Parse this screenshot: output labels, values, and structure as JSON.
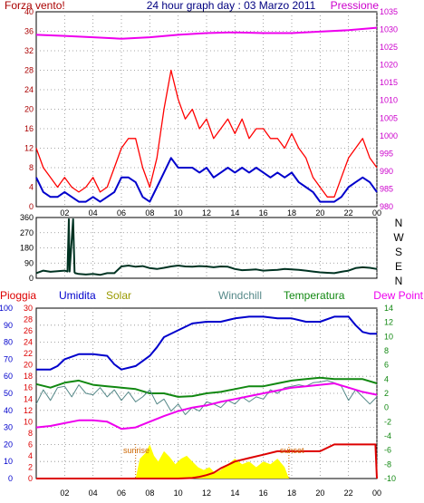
{
  "header": {
    "title": "24 hour graph day : 03 Marzo 2011",
    "left_label": "Forza vento!",
    "right_label": "Pressione"
  },
  "compass": [
    "N",
    "W",
    "S",
    "E",
    "N"
  ],
  "bottom_legend": {
    "pioggia": "Pioggia",
    "umidita": "Umidita",
    "solar": "Solar",
    "windchill": "Windchill",
    "temperatura": "Temperatura",
    "dewpoint": "Dew Point"
  },
  "annotations": {
    "sunrise": "sunrise",
    "sunset": "sunset"
  },
  "colors": {
    "wind_gust": "#ff0000",
    "wind_avg": "#0000cc",
    "pressure": "#ee00ee",
    "direction": "#003322",
    "humidity": "#0000cc",
    "solar": "#ffff00",
    "windchill": "#558888",
    "temperature": "#118811",
    "dewpoint": "#ee00ee",
    "rain": "#dd0000",
    "title": "#000080",
    "left_axis": "#aa0000",
    "right_axis": "#cc00cc"
  },
  "chart_data": [
    {
      "type": "line",
      "title": "24 hour graph day : 03 Marzo 2011",
      "xlabel": "",
      "x_ticks": [
        "02",
        "04",
        "06",
        "08",
        "10",
        "12",
        "14",
        "16",
        "18",
        "20",
        "22",
        "00"
      ],
      "x_range_hours": [
        0,
        24
      ],
      "y_left": {
        "label": "Forza vento!",
        "range": [
          0,
          40
        ],
        "ticks": [
          "0",
          "4",
          "8",
          "12",
          "16",
          "20",
          "24",
          "28",
          "32",
          "36",
          "40"
        ]
      },
      "y_right": {
        "label": "Pressione",
        "range": [
          980,
          1035
        ],
        "ticks": [
          "980",
          "985",
          "990",
          "995",
          "1000",
          "1005",
          "1010",
          "1015",
          "1020",
          "1025",
          "1030",
          "1035"
        ]
      },
      "grid": true,
      "series": [
        {
          "name": "",
          "axis": "left",
          "color": "#ff0000",
          "x": [
            0,
            0.5,
            1,
            1.5,
            2,
            2.5,
            3,
            3.5,
            4,
            4.5,
            5,
            5.5,
            6,
            6.5,
            7,
            7.5,
            8,
            8.5,
            9,
            9.5,
            10,
            10.5,
            11,
            11.5,
            12,
            12.5,
            13,
            13.5,
            14,
            14.5,
            15,
            15.5,
            16,
            16.5,
            17,
            17.5,
            18,
            18.5,
            19,
            19.5,
            20,
            20.5,
            21,
            21.5,
            22,
            22.5,
            23,
            23.5,
            24
          ],
          "y": [
            12,
            8,
            6,
            4,
            6,
            4,
            3,
            4,
            6,
            3,
            4,
            8,
            12,
            14,
            14,
            8,
            4,
            10,
            20,
            28,
            22,
            18,
            20,
            16,
            18,
            14,
            16,
            18,
            15,
            18,
            14,
            16,
            16,
            14,
            14,
            12,
            15,
            12,
            10,
            6,
            4,
            2,
            2,
            6,
            10,
            12,
            14,
            10,
            8
          ]
        },
        {
          "name": "",
          "axis": "left",
          "color": "#0000cc",
          "x": [
            0,
            0.5,
            1,
            1.5,
            2,
            2.5,
            3,
            3.5,
            4,
            4.5,
            5,
            5.5,
            6,
            6.5,
            7,
            7.5,
            8,
            8.5,
            9,
            9.5,
            10,
            10.5,
            11,
            11.5,
            12,
            12.5,
            13,
            13.5,
            14,
            14.5,
            15,
            15.5,
            16,
            16.5,
            17,
            17.5,
            18,
            18.5,
            19,
            19.5,
            20,
            20.5,
            21,
            21.5,
            22,
            22.5,
            23,
            23.5,
            24
          ],
          "y": [
            6,
            3,
            2,
            2,
            3,
            2,
            1,
            1,
            2,
            1,
            2,
            3,
            6,
            6,
            5,
            2,
            1,
            4,
            7,
            10,
            8,
            8,
            8,
            7,
            8,
            6,
            7,
            8,
            7,
            8,
            7,
            8,
            7,
            6,
            7,
            6,
            7,
            5,
            4,
            3,
            1,
            1,
            1,
            2,
            4,
            5,
            6,
            5,
            3
          ]
        },
        {
          "name": "",
          "axis": "right",
          "color": "#ee00ee",
          "x": [
            0,
            2,
            4,
            6,
            8,
            10,
            12,
            14,
            16,
            18,
            20,
            22,
            24
          ],
          "y": [
            1028.5,
            1028.2,
            1027.8,
            1027.4,
            1027.8,
            1028.5,
            1029,
            1029.2,
            1029,
            1029,
            1029.4,
            1029.8,
            1030.5
          ]
        }
      ]
    },
    {
      "type": "line",
      "title": "",
      "y_ticks": [
        "0",
        "90",
        "180",
        "270",
        "360"
      ],
      "y_range": [
        0,
        360
      ],
      "right_labels": [
        "N",
        "W",
        "S",
        "E",
        "N"
      ],
      "series": [
        {
          "name": "",
          "color": "#003322",
          "x": [
            0,
            0.5,
            1,
            1.5,
            2,
            2.2,
            2.3,
            2.35,
            2.6,
            2.7,
            2.75,
            3,
            3.5,
            4,
            4.5,
            5,
            5.5,
            6,
            6.5,
            7,
            7.5,
            8,
            8.5,
            9,
            9.5,
            10,
            10.5,
            11,
            11.5,
            12,
            12.5,
            13,
            13.5,
            14,
            14.5,
            15,
            15.5,
            16,
            16.5,
            17,
            17.5,
            18,
            18.5,
            19,
            19.5,
            20,
            20.5,
            21,
            21.5,
            22,
            22.5,
            23,
            23.5,
            24
          ],
          "y": [
            30,
            45,
            38,
            42,
            45,
            40,
            350,
            40,
            350,
            35,
            30,
            25,
            22,
            25,
            20,
            30,
            30,
            70,
            75,
            68,
            72,
            60,
            55,
            62,
            70,
            75,
            70,
            68,
            72,
            70,
            65,
            70,
            68,
            55,
            48,
            50,
            52,
            45,
            48,
            50,
            55,
            52,
            50,
            45,
            40,
            35,
            32,
            30,
            38,
            45,
            60,
            65,
            62,
            55
          ]
        }
      ]
    },
    {
      "type": "line",
      "title": "",
      "y_axes": [
        {
          "name": "",
          "color": "#0000cc",
          "range": [
            0,
            100
          ],
          "ticks": [
            "0",
            "10",
            "20",
            "30",
            "40",
            "50",
            "60",
            "70",
            "80",
            "90",
            "100"
          ]
        },
        {
          "name": "",
          "color": "#dd0000",
          "range": [
            0,
            30
          ],
          "ticks": [
            "0",
            "2",
            "4",
            "6",
            "8",
            "10",
            "12",
            "14",
            "16",
            "18",
            "20",
            "22",
            "24",
            "26",
            "28",
            "30"
          ]
        },
        {
          "name": "",
          "color": "#118811",
          "range": [
            -10,
            14
          ],
          "ticks": [
            "-10",
            "-8",
            "-6",
            "-4",
            "-2",
            "0",
            "2",
            "4",
            "6",
            "8",
            "10",
            "12",
            "14"
          ]
        }
      ],
      "legend": [
        "Pioggia",
        "Umidita",
        "Solar",
        "Windchill",
        "Temperatura",
        "Dew Point"
      ],
      "series": [
        {
          "name": "Umidita",
          "axis": "humidity",
          "color": "#0000cc",
          "x": [
            0,
            1,
            1.5,
            2,
            3,
            4,
            5,
            5.5,
            6,
            7,
            7.5,
            8,
            8.5,
            9,
            10,
            11,
            12,
            13,
            14,
            15,
            16,
            17,
            18,
            19,
            20,
            21,
            22,
            22.5,
            23,
            23.5,
            24
          ],
          "y": [
            64,
            64,
            66,
            70,
            73,
            73,
            72,
            67,
            64,
            66,
            69,
            72,
            77,
            83,
            87,
            91,
            92,
            92,
            94,
            95,
            95,
            94,
            94,
            92,
            92,
            95,
            95,
            90,
            86,
            85,
            85
          ]
        },
        {
          "name": "Temperatura",
          "axis": "temperature",
          "color": "#118811",
          "x": [
            0,
            1,
            2,
            3,
            4,
            5,
            6,
            7,
            8,
            9,
            10,
            11,
            12,
            13,
            14,
            15,
            16,
            17,
            18,
            19,
            20,
            21,
            22,
            23,
            24
          ],
          "y": [
            3.3,
            2.8,
            3.5,
            3.8,
            3.2,
            3.0,
            2.8,
            2.6,
            2.0,
            2.0,
            1.5,
            1.6,
            2.0,
            2.2,
            2.6,
            3.0,
            3.0,
            3.4,
            3.8,
            4.0,
            4.2,
            4.0,
            4.0,
            4.0,
            3.4
          ]
        },
        {
          "name": "Windchill",
          "axis": "temperature",
          "color": "#558888",
          "x": [
            0,
            0.5,
            1,
            1.5,
            2,
            2.5,
            3,
            3.5,
            4,
            4.5,
            5,
            5.5,
            6,
            6.5,
            7,
            7.5,
            8,
            8.5,
            9,
            9.5,
            10,
            10.5,
            11,
            11.5,
            12,
            12.5,
            13,
            13.5,
            14,
            14.5,
            15,
            15.5,
            16,
            16.5,
            17,
            17.5,
            18,
            18.5,
            19,
            19.5,
            20,
            20.5,
            21,
            21.5,
            22,
            22.5,
            23,
            23.5,
            24
          ],
          "y": [
            0.5,
            2.5,
            1.0,
            2.8,
            3.0,
            1.5,
            3.2,
            2.0,
            1.8,
            2.8,
            1.5,
            2.5,
            1.0,
            2.2,
            0.8,
            1.5,
            2.5,
            0.5,
            1.2,
            -0.5,
            0.5,
            -1.0,
            0,
            -0.5,
            0.8,
            0.5,
            0.0,
            1.0,
            0.5,
            1.5,
            0.8,
            1.5,
            1.2,
            2.5,
            2.0,
            2.8,
            3.0,
            3.2,
            3.0,
            3.5,
            3.6,
            3.8,
            3.5,
            3.0,
            1.0,
            2.5,
            1.5,
            0.5,
            1.5
          ]
        },
        {
          "name": "Dew Point",
          "axis": "temperature",
          "color": "#ee00ee",
          "x": [
            0,
            1,
            2,
            3,
            4,
            5,
            6,
            7,
            8,
            9,
            10,
            11,
            12,
            13,
            14,
            15,
            16,
            17,
            18,
            19,
            20,
            21,
            22,
            23,
            24
          ],
          "y": [
            -2.8,
            -2.6,
            -2.2,
            -1.8,
            -1.8,
            -2.0,
            -3.0,
            -2.8,
            -2.0,
            -1.2,
            -0.5,
            0.0,
            0.3,
            0.8,
            1.2,
            1.6,
            2.0,
            2.4,
            2.8,
            3.0,
            3.2,
            3.4,
            2.8,
            2.2,
            1.8
          ]
        },
        {
          "name": "Pioggia",
          "axis": "rain",
          "color": "#dd0000",
          "x": [
            0,
            10,
            11,
            11.5,
            12,
            12.5,
            13,
            13.5,
            14,
            15,
            16,
            17,
            18,
            19,
            20,
            21,
            22,
            23,
            23.9,
            24
          ],
          "y": [
            0,
            0,
            0.1,
            0.3,
            0.6,
            1.0,
            1.8,
            2.4,
            3.0,
            3.6,
            4.2,
            4.8,
            4.8,
            4.8,
            4.8,
            6.0,
            6.0,
            6.0,
            6.0,
            0
          ]
        },
        {
          "name": "Solar",
          "axis": "rain",
          "color": "#ffff00",
          "x": [
            7,
            7.3,
            7.7,
            8,
            8.3,
            8.6,
            9,
            9.4,
            9.8,
            10.2,
            10.6,
            11,
            11.4,
            11.8,
            12.2,
            12.6,
            13,
            13.5,
            14,
            14.5,
            15,
            15.5,
            16,
            16.5,
            17,
            17.5,
            17.8
          ],
          "y": [
            0,
            3.5,
            4.5,
            6.0,
            4.0,
            3.0,
            4.8,
            3.8,
            2.5,
            3.5,
            4.0,
            3.0,
            2.0,
            1.5,
            2.0,
            1.0,
            1.5,
            2.5,
            3.5,
            2.5,
            3.0,
            2.0,
            3.0,
            2.5,
            3.5,
            2.0,
            0
          ]
        }
      ]
    }
  ]
}
